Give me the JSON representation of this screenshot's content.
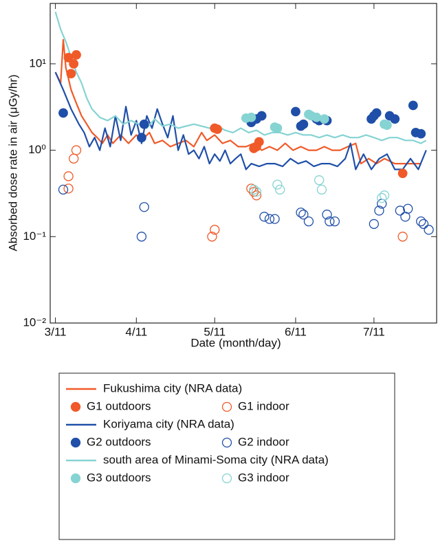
{
  "chart_data": {
    "type": "line",
    "xlabel": "Date (month/day)",
    "ylabel": "Absorbed dose rate in air (μGy/hr)",
    "xlim": [
      -2,
      146
    ],
    "xticks": [
      {
        "value": 0,
        "label": "3/11"
      },
      {
        "value": 31,
        "label": "4/11"
      },
      {
        "value": 61,
        "label": "5/11"
      },
      {
        "value": 92,
        "label": "6/11"
      },
      {
        "value": 122,
        "label": "7/11"
      }
    ],
    "ylim": [
      0.01,
      50
    ],
    "yscale": "log",
    "yticks": [
      {
        "value": 0.01,
        "label": "10⁻²"
      },
      {
        "value": 0.1,
        "label": "10⁻¹"
      },
      {
        "value": 1,
        "label": "10⁰"
      },
      {
        "value": 10,
        "label": "10¹"
      }
    ],
    "series": [
      {
        "name": "Fukushima city (NRA data)",
        "type": "line",
        "color": "#f05a28",
        "x": [
          0,
          2,
          3,
          4,
          6,
          8,
          10,
          12,
          14,
          16,
          18,
          20,
          22,
          25,
          28,
          31,
          33,
          36,
          38,
          41,
          44,
          47,
          50,
          53,
          56,
          58,
          61,
          64,
          67,
          70,
          73,
          76,
          79,
          82,
          85,
          88,
          91,
          94,
          97,
          100,
          103,
          106,
          109,
          112,
          115,
          117,
          120,
          123,
          126,
          130,
          133,
          136,
          140
        ],
        "values": [
          8,
          6,
          19,
          9,
          5,
          3.5,
          2.5,
          2,
          1.6,
          1.4,
          1.2,
          1.5,
          1.2,
          1.5,
          1.2,
          1.5,
          1.3,
          1.6,
          1.2,
          1.3,
          1.1,
          1.2,
          1.3,
          1.1,
          1.6,
          1.3,
          1.5,
          1.2,
          1.3,
          1.1,
          1.1,
          1.2,
          1.0,
          1.1,
          1.0,
          1.2,
          1.0,
          1.1,
          1.0,
          1.0,
          1.1,
          1.0,
          1.0,
          1.1,
          1.2,
          0.7,
          0.8,
          0.7,
          0.8,
          0.7,
          0.7,
          0.7,
          0.7
        ]
      },
      {
        "name": "G1 outdoors",
        "type": "scatter",
        "marker": "filled",
        "color": "#f05a28",
        "x": [
          5,
          8,
          7,
          6,
          61,
          62,
          76,
          77,
          78,
          133
        ],
        "values": [
          11.8,
          12.7,
          10,
          7.7,
          1.8,
          1.75,
          1.05,
          1.1,
          1.25,
          0.54
        ]
      },
      {
        "name": "G1 indoor",
        "type": "scatter",
        "marker": "open",
        "color": "#f05a28",
        "x": [
          5,
          5,
          7,
          8,
          60,
          61,
          75,
          76,
          77,
          133
        ],
        "values": [
          0.5,
          0.36,
          0.8,
          1.0,
          0.1,
          0.12,
          0.36,
          0.33,
          0.3,
          0.1
        ]
      },
      {
        "name": "Koriyama city (NRA data)",
        "type": "line",
        "color": "#1f4fa8",
        "x": [
          0,
          3,
          6,
          9,
          11,
          13,
          15,
          17,
          19,
          21,
          23,
          25,
          27,
          29,
          31,
          33,
          35,
          37,
          39,
          41,
          43,
          45,
          47,
          49,
          51,
          53,
          55,
          57,
          59,
          61,
          63,
          65,
          67,
          69,
          71,
          73,
          75,
          78,
          81,
          84,
          87,
          90,
          93,
          96,
          99,
          102,
          105,
          108,
          111,
          113,
          115,
          118,
          121,
          124,
          127,
          130,
          133,
          136,
          139,
          142
        ],
        "values": [
          8,
          5,
          3,
          2,
          1.6,
          1.1,
          1.4,
          1.0,
          1.8,
          1.1,
          2.5,
          1.3,
          3.2,
          1.5,
          2.2,
          1.2,
          2.5,
          1.8,
          3.0,
          2.0,
          1.4,
          2.5,
          1.0,
          1.5,
          0.9,
          1.0,
          0.8,
          1.1,
          0.7,
          0.9,
          0.75,
          1.0,
          0.7,
          0.8,
          0.9,
          0.6,
          0.7,
          0.65,
          0.7,
          0.7,
          0.65,
          0.8,
          0.7,
          0.75,
          0.65,
          0.7,
          0.7,
          0.65,
          0.8,
          1.2,
          0.6,
          0.9,
          0.6,
          0.8,
          0.9,
          0.6,
          0.6,
          0.8,
          0.6,
          1.0
        ]
      },
      {
        "name": "G2 outdoors",
        "type": "scatter",
        "marker": "filled",
        "color": "#1f4fa8",
        "x": [
          3,
          34,
          33,
          75,
          77,
          79,
          92,
          95,
          94,
          100,
          101,
          104,
          121,
          123,
          122,
          128,
          130,
          137,
          138,
          140
        ],
        "values": [
          2.7,
          2.0,
          1.4,
          2.1,
          2.3,
          2.5,
          2.8,
          2.0,
          1.9,
          2.3,
          2.2,
          2.2,
          2.3,
          2.7,
          2.5,
          2.5,
          2.3,
          3.3,
          1.6,
          1.55
        ]
      },
      {
        "name": "G2 indoor",
        "type": "scatter",
        "marker": "open",
        "color": "#1f4fa8",
        "x": [
          3,
          34,
          33,
          80,
          82,
          84,
          94,
          95,
          97,
          104,
          105,
          107,
          122,
          124,
          125,
          132,
          134,
          135,
          140,
          141,
          143
        ],
        "values": [
          0.35,
          0.22,
          0.1,
          0.17,
          0.16,
          0.16,
          0.19,
          0.18,
          0.15,
          0.18,
          0.15,
          0.15,
          0.14,
          0.2,
          0.24,
          0.2,
          0.17,
          0.21,
          0.15,
          0.14,
          0.12
        ]
      },
      {
        "name": "south area of Minami-Soma city (NRA data)",
        "type": "line",
        "color": "#86d3d3",
        "x": [
          0,
          2,
          4,
          6,
          8,
          10,
          12,
          14,
          17,
          20,
          23,
          26,
          29,
          32,
          35,
          38,
          41,
          44,
          47,
          50,
          53,
          56,
          59,
          62,
          65,
          68,
          71,
          74,
          77,
          80,
          83,
          86,
          89,
          92,
          95,
          98,
          101,
          104,
          107,
          110,
          113,
          116,
          119,
          122,
          125,
          128,
          131,
          134,
          137,
          140,
          142
        ],
        "values": [
          40,
          25,
          18,
          12,
          8,
          6,
          4,
          3,
          2.4,
          2.2,
          2.5,
          2.0,
          2.2,
          2.0,
          1.8,
          2.3,
          1.9,
          2.0,
          1.8,
          1.9,
          2.0,
          1.9,
          1.8,
          1.9,
          1.7,
          1.6,
          1.8,
          1.6,
          1.7,
          1.5,
          1.6,
          1.6,
          1.5,
          1.6,
          1.5,
          1.5,
          1.4,
          1.5,
          1.4,
          1.5,
          1.4,
          1.4,
          1.5,
          1.4,
          1.3,
          1.4,
          1.4,
          1.3,
          1.3,
          1.2,
          1.3
        ]
      },
      {
        "name": "G3 outdoors",
        "type": "scatter",
        "marker": "filled",
        "color": "#86d3d3",
        "x": [
          73,
          75,
          84,
          85,
          97,
          98,
          100,
          103,
          126,
          127
        ],
        "values": [
          2.35,
          2.4,
          1.85,
          1.8,
          2.6,
          2.5,
          2.4,
          2.3,
          2.0,
          1.95
        ]
      },
      {
        "name": "G3 indoor",
        "type": "scatter",
        "marker": "open",
        "color": "#86d3d3",
        "x": [
          76,
          77,
          85,
          86,
          101,
          102,
          125,
          126
        ],
        "values": [
          0.35,
          0.33,
          0.4,
          0.35,
          0.45,
          0.35,
          0.28,
          0.3
        ]
      }
    ]
  }
}
